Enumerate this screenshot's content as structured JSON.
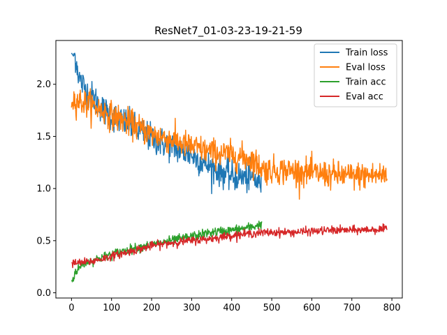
{
  "chart_data": {
    "type": "line",
    "title": "ResNet7_01-03-23-19-21-59",
    "xlabel": "",
    "ylabel": "",
    "xlim": [
      -39,
      826
    ],
    "ylim": [
      -0.05,
      2.42
    ],
    "x_ticks": [
      0,
      100,
      200,
      300,
      400,
      500,
      600,
      700,
      800
    ],
    "y_ticks": [
      0.0,
      0.5,
      1.0,
      1.5,
      2.0
    ],
    "x_tick_labels": [
      "0",
      "100",
      "200",
      "300",
      "400",
      "500",
      "600",
      "700",
      "800"
    ],
    "y_tick_labels": [
      "0.0",
      "0.5",
      "1.0",
      "1.5",
      "2.0"
    ],
    "grid": false,
    "legend_position": "top-right",
    "series": [
      {
        "name": "Train loss",
        "color": "#1f77b4",
        "x_range": [
          0,
          475
        ],
        "anchors": [
          [
            0,
            2.3
          ],
          [
            10,
            2.26
          ],
          [
            20,
            2.05
          ],
          [
            40,
            1.92
          ],
          [
            60,
            1.85
          ],
          [
            80,
            1.75
          ],
          [
            100,
            1.7
          ],
          [
            150,
            1.6
          ],
          [
            200,
            1.48
          ],
          [
            250,
            1.4
          ],
          [
            300,
            1.32
          ],
          [
            350,
            1.2
          ],
          [
            400,
            1.12
          ],
          [
            450,
            1.1
          ],
          [
            475,
            1.05
          ]
        ],
        "noise": 0.13
      },
      {
        "name": "Eval loss",
        "color": "#ff7f0e",
        "x_range": [
          0,
          788
        ],
        "anchors": [
          [
            0,
            1.86
          ],
          [
            50,
            1.8
          ],
          [
            100,
            1.7
          ],
          [
            150,
            1.62
          ],
          [
            200,
            1.52
          ],
          [
            250,
            1.47
          ],
          [
            300,
            1.4
          ],
          [
            350,
            1.35
          ],
          [
            400,
            1.32
          ],
          [
            450,
            1.28
          ],
          [
            480,
            1.18
          ],
          [
            550,
            1.17
          ],
          [
            600,
            1.15
          ],
          [
            650,
            1.13
          ],
          [
            700,
            1.12
          ],
          [
            788,
            1.13
          ]
        ],
        "noise": 0.12
      },
      {
        "name": "Train acc",
        "color": "#2ca02c",
        "x_range": [
          0,
          475
        ],
        "anchors": [
          [
            0,
            0.1
          ],
          [
            10,
            0.2
          ],
          [
            30,
            0.28
          ],
          [
            60,
            0.32
          ],
          [
            100,
            0.37
          ],
          [
            150,
            0.42
          ],
          [
            200,
            0.46
          ],
          [
            250,
            0.5
          ],
          [
            300,
            0.54
          ],
          [
            350,
            0.58
          ],
          [
            400,
            0.6
          ],
          [
            450,
            0.63
          ],
          [
            475,
            0.66
          ]
        ],
        "noise": 0.04
      },
      {
        "name": "Eval acc",
        "color": "#d62728",
        "x_range": [
          0,
          788
        ],
        "anchors": [
          [
            0,
            0.28
          ],
          [
            50,
            0.3
          ],
          [
            100,
            0.35
          ],
          [
            150,
            0.4
          ],
          [
            200,
            0.45
          ],
          [
            250,
            0.48
          ],
          [
            300,
            0.5
          ],
          [
            350,
            0.52
          ],
          [
            400,
            0.55
          ],
          [
            450,
            0.57
          ],
          [
            500,
            0.58
          ],
          [
            550,
            0.58
          ],
          [
            600,
            0.59
          ],
          [
            650,
            0.6
          ],
          [
            700,
            0.6
          ],
          [
            788,
            0.61
          ]
        ],
        "noise": 0.035
      }
    ]
  }
}
